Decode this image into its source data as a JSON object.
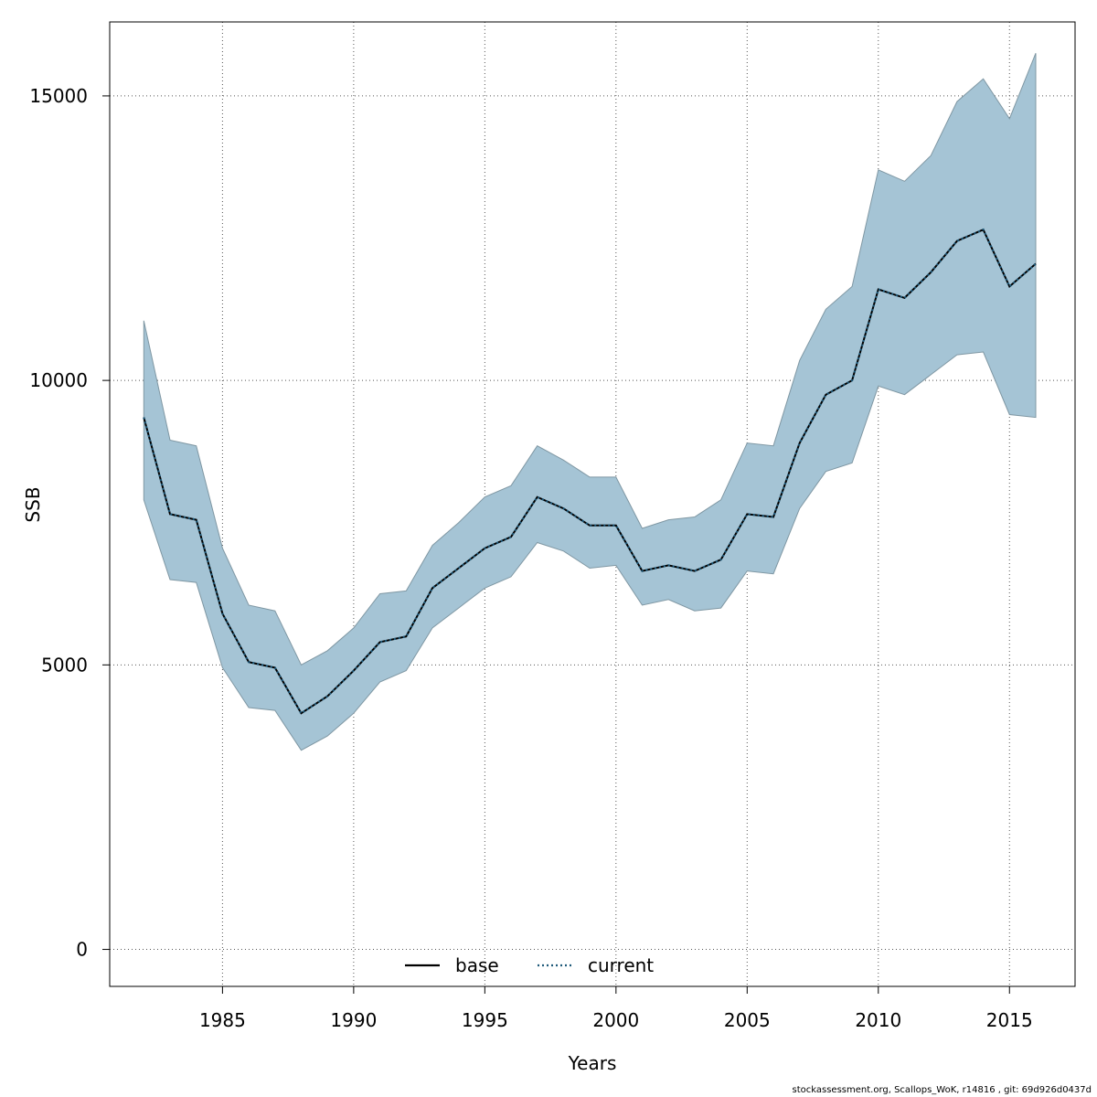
{
  "chart_data": {
    "type": "line",
    "title": "",
    "xlabel": "Years",
    "ylabel": "SSB",
    "xlim": [
      1980.7,
      2017.5
    ],
    "ylim": [
      -650,
      16300
    ],
    "xticks": [
      1985,
      1990,
      1995,
      2000,
      2005,
      2010,
      2015
    ],
    "yticks": [
      0,
      5000,
      10000,
      15000
    ],
    "grid": true,
    "legend": {
      "placement": "bottom-center",
      "entries": [
        "base",
        "current"
      ]
    },
    "colors": {
      "band_fill": "#a5c4d5",
      "band_edge": "#7f97a3",
      "current_line": "#1f5a7a",
      "base_line": "#000000",
      "grid": "#555555"
    },
    "x": [
      1982,
      1983,
      1984,
      1985,
      1986,
      1987,
      1988,
      1989,
      1990,
      1991,
      1992,
      1993,
      1994,
      1995,
      1996,
      1997,
      1998,
      1999,
      2000,
      2001,
      2002,
      2003,
      2004,
      2005,
      2006,
      2007,
      2008,
      2009,
      2010,
      2011,
      2012,
      2013,
      2014,
      2015,
      2016
    ],
    "series": [
      {
        "name": "base",
        "style": "solid",
        "values": [
          9350,
          7650,
          7550,
          5900,
          5050,
          4950,
          4150,
          4450,
          4900,
          5400,
          5500,
          6350,
          6700,
          7050,
          7250,
          7950,
          7750,
          7450,
          7450,
          6650,
          6750,
          6650,
          6850,
          7650,
          7600,
          8900,
          9750,
          10000,
          11600,
          11450,
          11900,
          12450,
          12650,
          11650,
          12050
        ]
      },
      {
        "name": "current",
        "style": "dotted",
        "values": [
          9350,
          7650,
          7550,
          5900,
          5050,
          4950,
          4150,
          4450,
          4900,
          5400,
          5500,
          6350,
          6700,
          7050,
          7250,
          7950,
          7750,
          7450,
          7450,
          6650,
          6750,
          6650,
          6850,
          7650,
          7600,
          8900,
          9750,
          10000,
          11600,
          11450,
          11900,
          12450,
          12650,
          11650,
          12050
        ]
      }
    ],
    "confidence_band": {
      "lower": [
        7900,
        6500,
        6450,
        4950,
        4250,
        4200,
        3500,
        3750,
        4150,
        4700,
        4900,
        5650,
        6000,
        6350,
        6550,
        7150,
        7000,
        6700,
        6750,
        6050,
        6150,
        5950,
        6000,
        6650,
        6600,
        7750,
        8400,
        8550,
        9900,
        9750,
        10100,
        10450,
        10500,
        9400,
        9350
      ],
      "upper": [
        11050,
        8950,
        8850,
        7050,
        6050,
        5950,
        5000,
        5250,
        5650,
        6250,
        6300,
        7100,
        7500,
        7950,
        8150,
        8850,
        8600,
        8300,
        8300,
        7400,
        7550,
        7600,
        7900,
        8900,
        8850,
        10350,
        11250,
        11650,
        13700,
        13500,
        13950,
        14900,
        15300,
        14600,
        15750
      ]
    }
  },
  "footer": "stockassessment.org, Scallops_WoK, r14816 , git: 69d926d0437d"
}
